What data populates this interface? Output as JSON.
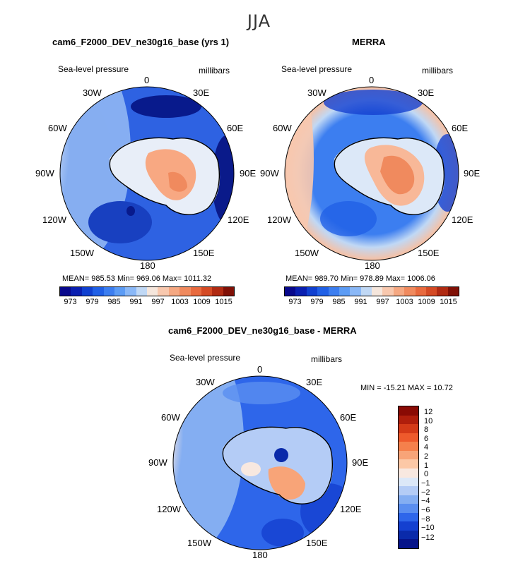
{
  "figure": {
    "season": "JJA"
  },
  "panels": [
    {
      "title": "cam6_F2000_DEV_ne30g16_base (yrs 1)",
      "variable": "Sea-level pressure",
      "units": "millibars",
      "longitudes": [
        "0",
        "30E",
        "60E",
        "90E",
        "120E",
        "150E",
        "180",
        "150W",
        "120W",
        "90W",
        "60W",
        "30W"
      ],
      "stats": "MEAN= 985.53   Min= 969.06   Max= 1011.32",
      "colorbar": {
        "ticks": [
          "973",
          "979",
          "985",
          "991",
          "997",
          "1003",
          "1009",
          "1015"
        ]
      }
    },
    {
      "title": "MERRA",
      "variable": "Sea-level pressure",
      "units": "millibars",
      "longitudes": [
        "0",
        "30E",
        "60E",
        "90E",
        "120E",
        "150E",
        "180",
        "150W",
        "120W",
        "90W",
        "60W",
        "30W"
      ],
      "stats": "MEAN= 989.70   Min= 978.89   Max= 1006.06",
      "colorbar": {
        "ticks": [
          "973",
          "979",
          "985",
          "991",
          "997",
          "1003",
          "1009",
          "1015"
        ]
      }
    },
    {
      "title": "cam6_F2000_DEV_ne30g16_base - MERRA",
      "variable": "Sea-level pressure",
      "units": "millibars",
      "longitudes": [
        "0",
        "30E",
        "60E",
        "90E",
        "120E",
        "150E",
        "180",
        "150W",
        "120W",
        "90W",
        "60W",
        "30W"
      ],
      "stats": "MIN = -15.21  MAX =   10.72",
      "colorbar": {
        "ticks": [
          "12",
          "10",
          "8",
          "6",
          "4",
          "2",
          "1",
          "0",
          "−1",
          "−2",
          "−4",
          "−6",
          "−8",
          "−10",
          "−12"
        ]
      }
    }
  ],
  "chart_data": [
    {
      "type": "heatmap",
      "projection": "south-polar-stereographic",
      "title": "cam6_F2000_DEV_ne30g16_base (yrs 1)",
      "variable": "Sea-level pressure",
      "units": "millibars",
      "season": "JJA",
      "mean": 985.53,
      "min": 969.06,
      "max": 1011.32,
      "colorbar_levels": [
        970,
        973,
        976,
        979,
        982,
        985,
        988,
        991,
        994,
        997,
        1000,
        1003,
        1006,
        1009,
        1012,
        1015
      ],
      "colorbar_colors": [
        "#08088c",
        "#0a1fb0",
        "#1040d0",
        "#2060e6",
        "#3c7ef0",
        "#5c9cf5",
        "#8ab8f7",
        "#c0d8f5",
        "#f5e6dc",
        "#f8c8ae",
        "#f5a882",
        "#f08a5e",
        "#e86a3e",
        "#d44a24",
        "#b02a12",
        "#801006"
      ]
    },
    {
      "type": "heatmap",
      "projection": "south-polar-stereographic",
      "title": "MERRA",
      "variable": "Sea-level pressure",
      "units": "millibars",
      "season": "JJA",
      "mean": 989.7,
      "min": 978.89,
      "max": 1006.06,
      "colorbar_levels": [
        970,
        973,
        976,
        979,
        982,
        985,
        988,
        991,
        994,
        997,
        1000,
        1003,
        1006,
        1009,
        1012,
        1015
      ]
    },
    {
      "type": "heatmap",
      "projection": "south-polar-stereographic",
      "title": "cam6_F2000_DEV_ne30g16_base - MERRA",
      "variable": "Sea-level pressure",
      "units": "millibars",
      "season": "JJA",
      "min": -15.21,
      "max": 10.72,
      "colorbar_levels": [
        12,
        10,
        8,
        6,
        4,
        2,
        1,
        0,
        -1,
        -2,
        -4,
        -6,
        -8,
        -10,
        -12
      ],
      "colorbar_colors": [
        "#8a0a04",
        "#b01e0c",
        "#d43a18",
        "#ee5a2c",
        "#f5804c",
        "#f8a478",
        "#fcc8a6",
        "#f8e8e0",
        "#dce8f8",
        "#b4ccf6",
        "#84aef2",
        "#5a8ef0",
        "#2e66ea",
        "#1440d0",
        "#0a2aaa",
        "#06148a"
      ]
    }
  ]
}
